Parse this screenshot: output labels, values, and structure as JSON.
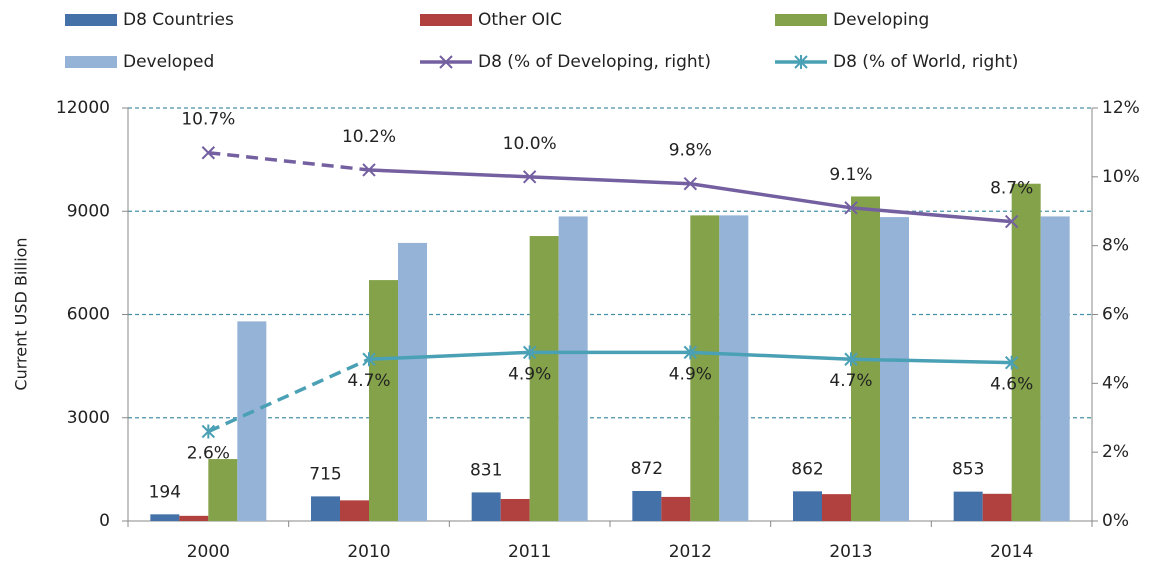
{
  "chart_data": {
    "type": "bar-line",
    "y_axis_label": "Current USD Billion",
    "categories": [
      "2000",
      "2010",
      "2011",
      "2012",
      "2013",
      "2014"
    ],
    "series": [
      {
        "name": "D8 Countries",
        "color": "#4472a8",
        "values": [
          194,
          715,
          831,
          872,
          862,
          853
        ],
        "show_labels": true
      },
      {
        "name": "Other OIC",
        "color": "#b0413e",
        "values": [
          150,
          600,
          640,
          700,
          780,
          790
        ]
      },
      {
        "name": "Developing",
        "color": "#84a24a",
        "values": [
          1800,
          7000,
          8280,
          8880,
          9430,
          9800
        ]
      },
      {
        "name": "Developed",
        "color": "#95b3d7",
        "values": [
          5800,
          8080,
          8850,
          8880,
          8830,
          8850
        ]
      },
      {
        "name": "D8 (% of Developing, right)",
        "type": "line",
        "axis": "y2",
        "color": "#7460a0",
        "marker": "x",
        "label_side": "above",
        "values": [
          10.7,
          10.2,
          10.0,
          9.8,
          9.1,
          8.7
        ],
        "value_labels": [
          "10.7%",
          "10.2%",
          "10.0%",
          "9.8%",
          "9.1%",
          "8.7%"
        ]
      },
      {
        "name": "D8 (% of World, right)",
        "type": "line",
        "axis": "y2",
        "color": "#4aa0b4",
        "marker": "star",
        "label_side": "below",
        "values": [
          2.6,
          4.7,
          4.9,
          4.9,
          4.7,
          4.6
        ],
        "value_labels": [
          "2.6%",
          "4.7%",
          "4.9%",
          "4.9%",
          "4.7%",
          "4.6%"
        ]
      }
    ],
    "dash_first_segment": true,
    "ylim": [
      0,
      12000
    ],
    "yticks": [
      0,
      3000,
      6000,
      9000,
      12000
    ],
    "y2lim": [
      0,
      12
    ],
    "y2ticks": [
      {
        "value": 0,
        "label": "0%"
      },
      {
        "value": 2,
        "label": "2%"
      },
      {
        "value": 4,
        "label": "4%"
      },
      {
        "value": 6,
        "label": "6%"
      },
      {
        "value": 8,
        "label": "8%"
      },
      {
        "value": 10,
        "label": "10%"
      },
      {
        "value": 12,
        "label": "12%"
      }
    ],
    "grid": true,
    "grid_color": "#4a90a8",
    "legend": "top"
  }
}
